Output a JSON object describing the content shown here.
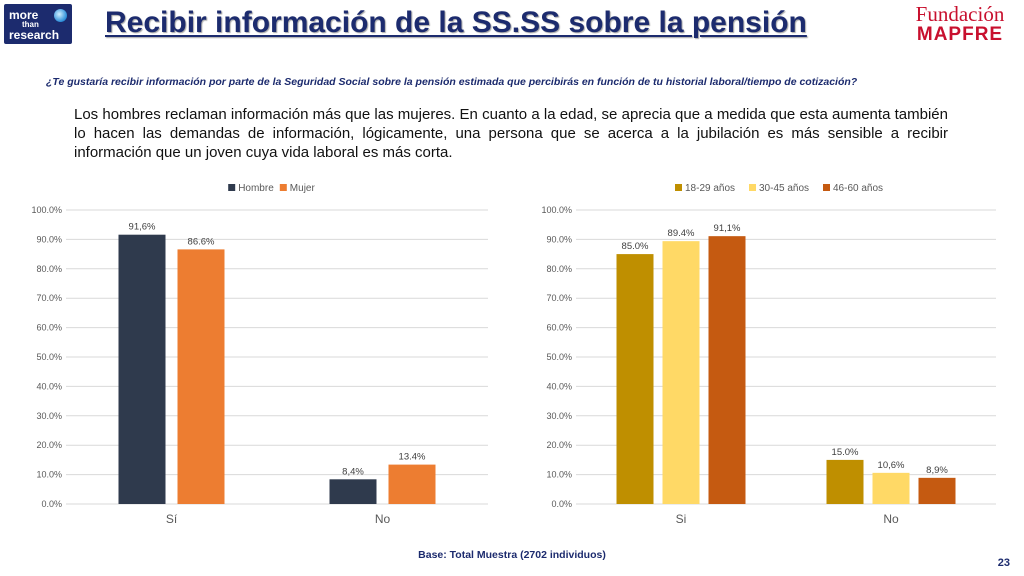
{
  "header": {
    "logo_left": {
      "line1": "more",
      "line2": "than",
      "line3": "research"
    },
    "title": "Recibir información de la SS.SS sobre la pensión",
    "logo_right": {
      "line1": "Fundación",
      "line2": "MAPFRE"
    }
  },
  "question": "¿Te gustaría recibir información por parte de la Seguridad Social sobre la pensión estimada que percibirás en función de tu historial laboral/tiempo de cotización?",
  "description": "Los hombres reclaman información más que las mujeres. En cuanto a la edad, se aprecia que a medida que esta aumenta también lo hacen las demandas de información, lógicamente, una persona que se acerca a la jubilación es más sensible a recibir información que un joven cuya vida laboral es más corta.",
  "footer": {
    "base": "Base: Total Muestra (2702 individuos)",
    "page": "23"
  },
  "colors": {
    "title": "#1c2b6e",
    "brand_red": "#c8102e",
    "grid": "#d9d9d9",
    "axis_text": "#595959"
  },
  "chart_data": [
    {
      "type": "bar",
      "categories": [
        "Sí",
        "No"
      ],
      "series": [
        {
          "name": "Hombre",
          "values": [
            91.6,
            8.4
          ],
          "labels": [
            "91,6%",
            "8,4%"
          ],
          "color": "#2f3a4d"
        },
        {
          "name": "Mujer",
          "values": [
            86.6,
            13.4
          ],
          "labels": [
            "86.6%",
            "13.4%"
          ],
          "color": "#ed7d31"
        }
      ],
      "ylim": [
        0,
        100
      ],
      "yticks": [
        "0.0%",
        "10.0%",
        "20.0%",
        "30.0%",
        "40.0%",
        "50.0%",
        "60.0%",
        "70.0%",
        "80.0%",
        "90.0%",
        "100.0%"
      ],
      "grid": true,
      "legend": "top-center"
    },
    {
      "type": "bar",
      "categories": [
        "Si",
        "No"
      ],
      "series": [
        {
          "name": "18-29 años",
          "values": [
            85.0,
            15.0
          ],
          "labels": [
            "85.0%",
            "15.0%"
          ],
          "color": "#bf8f00"
        },
        {
          "name": "30-45 años",
          "values": [
            89.4,
            10.6
          ],
          "labels": [
            "89.4%",
            "10,6%"
          ],
          "color": "#ffd966"
        },
        {
          "name": "46-60 años",
          "values": [
            91.1,
            8.9
          ],
          "labels": [
            "91,1%",
            "8,9%"
          ],
          "color": "#c55a11"
        }
      ],
      "ylim": [
        0,
        100
      ],
      "yticks": [
        "0.0%",
        "10.0%",
        "20.0%",
        "30.0%",
        "40.0%",
        "50.0%",
        "60.0%",
        "70.0%",
        "80.0%",
        "90.0%",
        "100.0%"
      ],
      "grid": true,
      "legend": "top-center"
    }
  ]
}
